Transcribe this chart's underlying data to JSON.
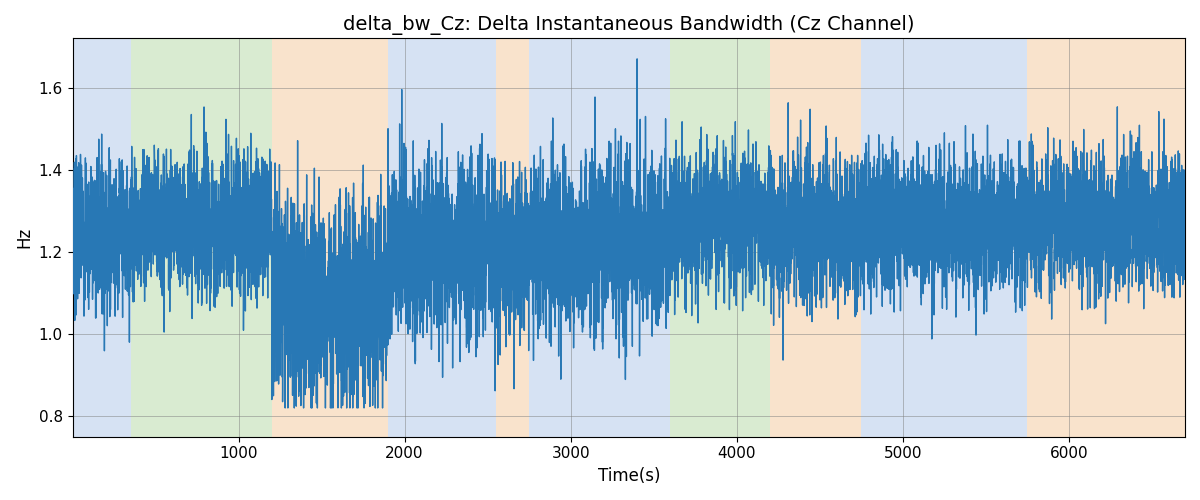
{
  "title": "delta_bw_Cz: Delta Instantaneous Bandwidth (Cz Channel)",
  "xlabel": "Time(s)",
  "ylabel": "Hz",
  "xlim": [
    0,
    6700
  ],
  "ylim": [
    0.75,
    1.72
  ],
  "yticks": [
    0.8,
    1.0,
    1.2,
    1.4,
    1.6
  ],
  "xticks": [
    1000,
    2000,
    3000,
    4000,
    5000,
    6000
  ],
  "line_color": "#2878b5",
  "line_width": 1.0,
  "background_color": "#ffffff",
  "bands": [
    {
      "xmin": 0,
      "xmax": 350,
      "color": "#aec6e8",
      "alpha": 0.5
    },
    {
      "xmin": 350,
      "xmax": 1200,
      "color": "#b5d9a5",
      "alpha": 0.5
    },
    {
      "xmin": 1200,
      "xmax": 1900,
      "color": "#f5c99a",
      "alpha": 0.5
    },
    {
      "xmin": 1900,
      "xmax": 2550,
      "color": "#aec6e8",
      "alpha": 0.5
    },
    {
      "xmin": 2550,
      "xmax": 2750,
      "color": "#f5c99a",
      "alpha": 0.5
    },
    {
      "xmin": 2750,
      "xmax": 3600,
      "color": "#aec6e8",
      "alpha": 0.5
    },
    {
      "xmin": 3600,
      "xmax": 4200,
      "color": "#b5d9a5",
      "alpha": 0.5
    },
    {
      "xmin": 4200,
      "xmax": 4750,
      "color": "#f5c99a",
      "alpha": 0.5
    },
    {
      "xmin": 4750,
      "xmax": 5750,
      "color": "#aec6e8",
      "alpha": 0.5
    },
    {
      "xmin": 5750,
      "xmax": 6700,
      "color": "#f5c99a",
      "alpha": 0.5
    }
  ],
  "title_fontsize": 14,
  "label_fontsize": 12,
  "tick_fontsize": 11,
  "n_per_sec": 2,
  "total_seconds": 6700,
  "seed": 7
}
